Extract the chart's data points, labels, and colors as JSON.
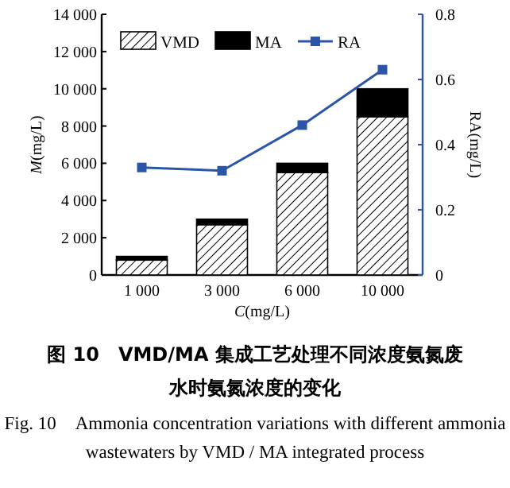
{
  "chart_data": {
    "type": "bar",
    "stacked": true,
    "categories": [
      "1 000",
      "3 000",
      "6 000",
      "10 000"
    ],
    "xlabel": "C(mg/L)",
    "ylabel": "M(mg/L)",
    "y2label": "RA(mg/L)",
    "series": [
      {
        "name": "VMD",
        "color": "#000000",
        "values": [
          800,
          2700,
          5500,
          8500
        ]
      },
      {
        "name": "MA",
        "color": "#000000",
        "values": [
          200,
          300,
          500,
          1500
        ]
      },
      {
        "name": "RA",
        "type": "line",
        "axis": "y2",
        "color": "#2b55a8",
        "marker": "square",
        "values": [
          0.33,
          0.32,
          0.46,
          0.63
        ]
      }
    ],
    "ylim": [
      0,
      14000
    ],
    "yticks": [
      0,
      {
        "value": 2000,
        "label": "2 000"
      },
      {
        "value": 4000,
        "label": "4 000"
      },
      {
        "value": 6000,
        "label": "6 000"
      },
      {
        "value": 8000,
        "label": "8 000"
      },
      {
        "value": 10000,
        "label": "10 000"
      },
      {
        "value": 12000,
        "label": "12 000"
      },
      {
        "value": 14000,
        "label": "14 000"
      }
    ],
    "y2lim": [
      0,
      0.8
    ],
    "y2ticks": [
      0,
      0.2,
      0.4,
      0.6,
      0.8
    ],
    "legend": "top",
    "grid": false,
    "annotations": [
      "图 10　VMD/MA 集成工艺处理不同浓度氨氮废水时氨氮浓度的变化",
      "Fig. 10　Ammonia concentration variations with different ammonia wastewaters by VMD / MA integrated process"
    ]
  }
}
